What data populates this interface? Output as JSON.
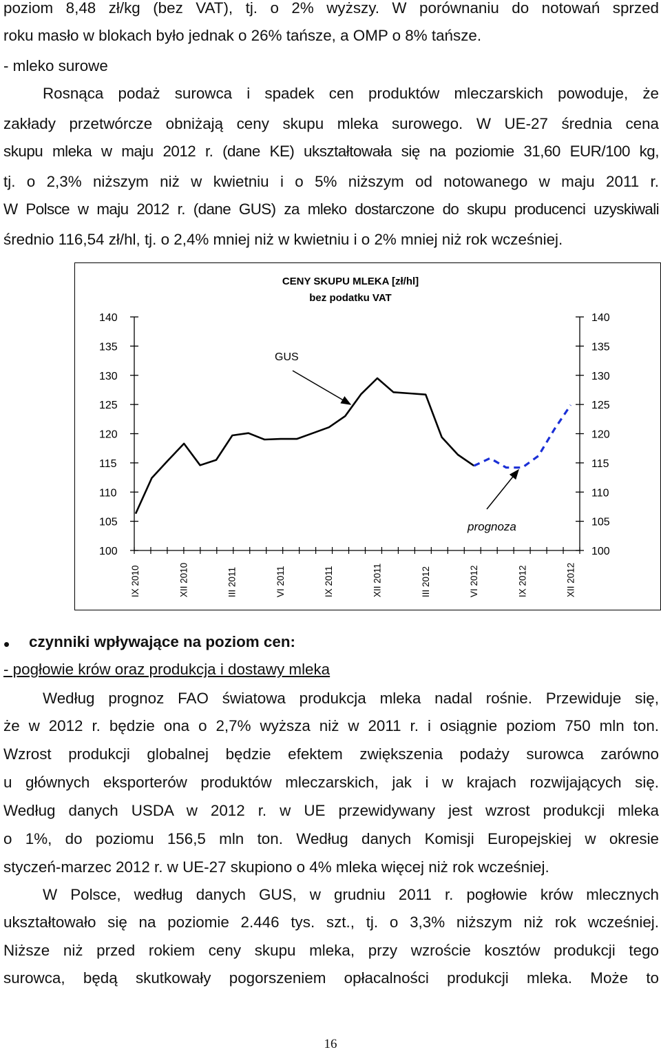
{
  "para1": {
    "lines": [
      "poziom 8,48 zł/kg (bez VAT), tj. o 2% wyższy. W porównaniu do notowań sprzed",
      "roku masło w blokach było jednak o 26% tańsze, a OMP o 8% tańsze."
    ]
  },
  "section_milk": {
    "heading": "- mleko surowe"
  },
  "para2": {
    "lines": [
      "Rosnąca podaż surowca i spadek cen produktów mleczarskich powoduje, że",
      "zakłady przetwórcze obniżają ceny skupu mleka surowego. W UE-27 średnia cena",
      "skupu mleka w maju 2012 r. (dane KE) ukształtowała się na poziomie 31,60 EUR/100 kg,",
      "tj. o 2,3% niższym niż w kwietniu i o 5% niższym od notowanego w maju 2011 r.",
      "W Polsce w maju 2012 r. (dane GUS) za mleko dostarczone do skupu producenci uzyskiwali",
      "średnio 116,54 zł/hl, tj. o 2,4% mniej niż w kwietniu i o 2% mniej niż rok wcześniej."
    ]
  },
  "chart_data": {
    "type": "line",
    "title": "CENY SKUPU MLEKA  [zł/hl]",
    "subtitle": "bez podatku VAT",
    "ylim": [
      100,
      140
    ],
    "yticks": [
      "100",
      "105",
      "110",
      "115",
      "120",
      "125",
      "130",
      "135",
      "140"
    ],
    "x_tick_labels": [
      "IX 2010",
      "XII 2010",
      "III 2011",
      "VI 2011",
      "IX 2011",
      "XII 2011",
      "III 2012",
      "VI 2012",
      "IX 2012",
      "XII 2012"
    ],
    "annotations": {
      "gus": "GUS",
      "forecast": "prognoza"
    },
    "series": [
      {
        "name": "GUS",
        "style": "solid",
        "color": "#000000",
        "x": [
          0,
          1,
          2,
          3,
          4,
          5,
          6,
          7,
          8,
          9,
          10,
          11,
          12,
          13,
          14,
          15,
          16,
          17,
          18,
          19,
          20,
          21
        ],
        "values": [
          106.3,
          112.4,
          115.4,
          118.3,
          114.6,
          115.5,
          119.7,
          120.1,
          119.0,
          119.1,
          119.1,
          120.1,
          121.1,
          123.0,
          126.8,
          129.5,
          127.1,
          126.9,
          126.7,
          119.4,
          116.4,
          114.5
        ]
      },
      {
        "name": "prognoza",
        "style": "dashed",
        "color": "#1a2fd6",
        "x": [
          21,
          22,
          23,
          24,
          25,
          26,
          27
        ],
        "values": [
          114.5,
          115.8,
          114.2,
          114.2,
          116.2,
          120.8,
          124.9
        ]
      }
    ]
  },
  "section_factors": {
    "bullet": "•",
    "heading": "czynniki wpływające na poziom cen:",
    "subheading": "- pogłowie krów oraz produkcja i dostawy mleka"
  },
  "para3": {
    "lines": [
      "Według prognoz FAO światowa produkcja mleka nadal rośnie. Przewiduje się,",
      "że w 2012 r. będzie ona o 2,7% wyższa niż w 2011 r. i osiągnie poziom 750 mln ton.",
      "Wzrost produkcji globalnej będzie efektem zwiększenia podaży surowca zarówno",
      "u głównych eksporterów produktów mleczarskich, jak i w krajach rozwijających się.",
      "Według danych USDA w 2012 r. w UE przewidywany jest wzrost produkcji mleka",
      "o 1%, do poziomu 156,5 mln ton. Według danych Komisji Europejskiej w okresie",
      "styczeń-marzec 2012 r. w UE-27 skupiono o 4% mleka więcej niż rok wcześniej."
    ]
  },
  "para4": {
    "lines": [
      "W Polsce, według danych GUS, w grudniu 2011 r. pogłowie krów mlecznych",
      "ukształtowało się na poziomie 2.446 tys. szt., tj. o 3,3% niższym niż rok wcześniej.",
      "Niższe niż przed rokiem ceny skupu mleka, przy wzroście kosztów produkcji tego",
      "surowca, będą skutkowały pogorszeniem opłacalności produkcji mleka. Może to"
    ]
  },
  "page_number": "16"
}
